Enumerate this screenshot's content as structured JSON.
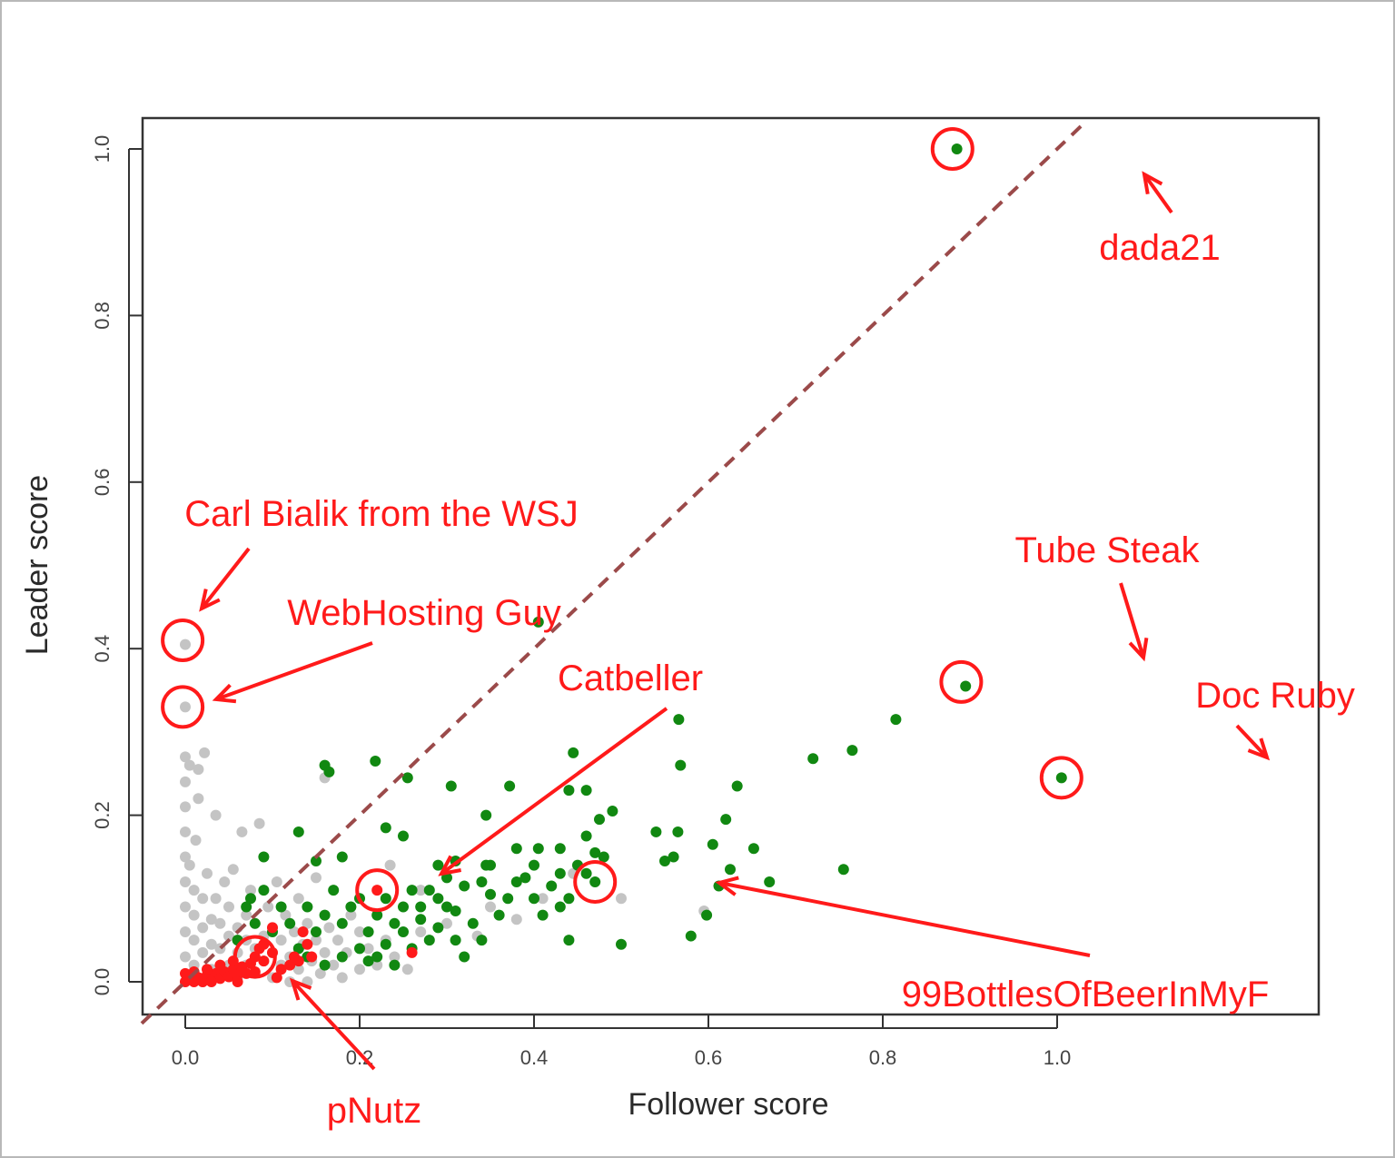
{
  "chart_data": {
    "type": "scatter",
    "title": "",
    "xlabel": "Follower score",
    "ylabel": "Leader score",
    "xlim": [
      -0.03,
      1.04
    ],
    "ylim": [
      -0.04,
      1.04
    ],
    "x_ticks": [
      "0.0",
      "0.2",
      "0.4",
      "0.6",
      "0.8",
      "1.0"
    ],
    "y_ticks": [
      "0.0",
      "0.2",
      "0.4",
      "0.6",
      "0.8",
      "1.0"
    ],
    "grid": false,
    "legend": "none",
    "reference_line": {
      "from": [
        -0.05,
        -0.05
      ],
      "to": [
        1.03,
        1.03
      ],
      "style": "dashed",
      "color": "#9b4a4a"
    },
    "colors": {
      "gray": "#c4c4c4",
      "green": "#118811",
      "red": "#ff1a1a",
      "annotation": "#ff1a1a"
    },
    "series": [
      {
        "color": "gray",
        "points": [
          [
            0.0,
            0.0
          ],
          [
            0.0,
            0.03
          ],
          [
            0.0,
            0.06
          ],
          [
            0.0,
            0.09
          ],
          [
            0.0,
            0.12
          ],
          [
            0.0,
            0.15
          ],
          [
            0.0,
            0.18
          ],
          [
            0.0,
            0.21
          ],
          [
            0.0,
            0.24
          ],
          [
            0.0,
            0.27
          ],
          [
            0.0,
            0.33
          ],
          [
            0.0,
            0.405
          ],
          [
            0.005,
            0.14
          ],
          [
            0.01,
            0.02
          ],
          [
            0.01,
            0.05
          ],
          [
            0.01,
            0.08
          ],
          [
            0.01,
            0.11
          ],
          [
            0.012,
            0.17
          ],
          [
            0.015,
            0.22
          ],
          [
            0.02,
            0.0
          ],
          [
            0.02,
            0.035
          ],
          [
            0.02,
            0.065
          ],
          [
            0.02,
            0.1
          ],
          [
            0.022,
            0.275
          ],
          [
            0.025,
            0.13
          ],
          [
            0.03,
            0.015
          ],
          [
            0.03,
            0.045
          ],
          [
            0.03,
            0.075
          ],
          [
            0.035,
            0.1
          ],
          [
            0.035,
            0.2
          ],
          [
            0.04,
            0.01
          ],
          [
            0.04,
            0.04
          ],
          [
            0.04,
            0.07
          ],
          [
            0.045,
            0.12
          ],
          [
            0.05,
            0.02
          ],
          [
            0.05,
            0.055
          ],
          [
            0.05,
            0.09
          ],
          [
            0.055,
            0.135
          ],
          [
            0.06,
            0.005
          ],
          [
            0.06,
            0.035
          ],
          [
            0.06,
            0.065
          ],
          [
            0.065,
            0.18
          ],
          [
            0.07,
            0.02
          ],
          [
            0.07,
            0.05
          ],
          [
            0.07,
            0.08
          ],
          [
            0.075,
            0.11
          ],
          [
            0.08,
            0.01
          ],
          [
            0.08,
            0.04
          ],
          [
            0.08,
            0.07
          ],
          [
            0.085,
            0.19
          ],
          [
            0.09,
            0.025
          ],
          [
            0.09,
            0.055
          ],
          [
            0.095,
            0.09
          ],
          [
            0.1,
            0.005
          ],
          [
            0.1,
            0.035
          ],
          [
            0.1,
            0.065
          ],
          [
            0.105,
            0.12
          ],
          [
            0.11,
            0.02
          ],
          [
            0.11,
            0.05
          ],
          [
            0.115,
            0.08
          ],
          [
            0.12,
            0.0
          ],
          [
            0.12,
            0.03
          ],
          [
            0.125,
            0.06
          ],
          [
            0.13,
            0.015
          ],
          [
            0.13,
            0.1
          ],
          [
            0.135,
            0.045
          ],
          [
            0.14,
            0.0
          ],
          [
            0.14,
            0.07
          ],
          [
            0.145,
            0.025
          ],
          [
            0.15,
            0.05
          ],
          [
            0.15,
            0.125
          ],
          [
            0.155,
            0.01
          ],
          [
            0.16,
            0.035
          ],
          [
            0.16,
            0.245
          ],
          [
            0.165,
            0.065
          ],
          [
            0.17,
            0.02
          ],
          [
            0.175,
            0.05
          ],
          [
            0.18,
            0.005
          ],
          [
            0.185,
            0.035
          ],
          [
            0.19,
            0.08
          ],
          [
            0.2,
            0.015
          ],
          [
            0.2,
            0.06
          ],
          [
            0.21,
            0.04
          ],
          [
            0.22,
            0.02
          ],
          [
            0.23,
            0.05
          ],
          [
            0.24,
            0.03
          ],
          [
            0.255,
            0.015
          ],
          [
            0.27,
            0.06
          ],
          [
            0.3,
            0.07
          ],
          [
            0.335,
            0.055
          ],
          [
            0.35,
            0.09
          ],
          [
            0.38,
            0.075
          ],
          [
            0.41,
            0.1
          ],
          [
            0.445,
            0.13
          ],
          [
            0.5,
            0.1
          ],
          [
            0.595,
            0.085
          ],
          [
            0.235,
            0.14
          ],
          [
            0.27,
            0.11
          ],
          [
            0.005,
            0.26
          ],
          [
            0.015,
            0.255
          ]
        ]
      },
      {
        "color": "green",
        "points": [
          [
            0.885,
            1.0
          ],
          [
            0.895,
            0.355
          ],
          [
            1.005,
            0.245
          ],
          [
            0.405,
            0.432
          ],
          [
            0.47,
            0.12
          ],
          [
            0.16,
            0.26
          ],
          [
            0.165,
            0.252
          ],
          [
            0.218,
            0.265
          ],
          [
            0.255,
            0.245
          ],
          [
            0.305,
            0.235
          ],
          [
            0.345,
            0.2
          ],
          [
            0.372,
            0.235
          ],
          [
            0.445,
            0.275
          ],
          [
            0.44,
            0.23
          ],
          [
            0.46,
            0.23
          ],
          [
            0.46,
            0.175
          ],
          [
            0.475,
            0.195
          ],
          [
            0.49,
            0.205
          ],
          [
            0.566,
            0.315
          ],
          [
            0.568,
            0.26
          ],
          [
            0.633,
            0.235
          ],
          [
            0.72,
            0.268
          ],
          [
            0.765,
            0.278
          ],
          [
            0.815,
            0.315
          ],
          [
            0.62,
            0.195
          ],
          [
            0.565,
            0.18
          ],
          [
            0.54,
            0.18
          ],
          [
            0.652,
            0.16
          ],
          [
            0.67,
            0.12
          ],
          [
            0.755,
            0.135
          ],
          [
            0.605,
            0.165
          ],
          [
            0.625,
            0.135
          ],
          [
            0.612,
            0.115
          ],
          [
            0.598,
            0.08
          ],
          [
            0.58,
            0.055
          ],
          [
            0.55,
            0.145
          ],
          [
            0.56,
            0.15
          ],
          [
            0.5,
            0.045
          ],
          [
            0.44,
            0.05
          ],
          [
            0.075,
            0.1
          ],
          [
            0.09,
            0.15
          ],
          [
            0.13,
            0.18
          ],
          [
            0.15,
            0.145
          ],
          [
            0.18,
            0.15
          ],
          [
            0.23,
            0.185
          ],
          [
            0.25,
            0.175
          ],
          [
            0.29,
            0.14
          ],
          [
            0.31,
            0.145
          ],
          [
            0.345,
            0.14
          ],
          [
            0.35,
            0.14
          ],
          [
            0.38,
            0.16
          ],
          [
            0.4,
            0.14
          ],
          [
            0.405,
            0.16
          ],
          [
            0.43,
            0.16
          ],
          [
            0.43,
            0.13
          ],
          [
            0.46,
            0.13
          ],
          [
            0.38,
            0.12
          ],
          [
            0.37,
            0.1
          ],
          [
            0.4,
            0.1
          ],
          [
            0.41,
            0.08
          ],
          [
            0.43,
            0.09
          ],
          [
            0.36,
            0.08
          ],
          [
            0.33,
            0.07
          ],
          [
            0.34,
            0.05
          ],
          [
            0.31,
            0.05
          ],
          [
            0.32,
            0.03
          ],
          [
            0.3,
            0.09
          ],
          [
            0.28,
            0.11
          ],
          [
            0.27,
            0.09
          ],
          [
            0.26,
            0.11
          ],
          [
            0.25,
            0.09
          ],
          [
            0.24,
            0.07
          ],
          [
            0.23,
            0.1
          ],
          [
            0.22,
            0.08
          ],
          [
            0.21,
            0.06
          ],
          [
            0.2,
            0.1
          ],
          [
            0.19,
            0.09
          ],
          [
            0.18,
            0.07
          ],
          [
            0.17,
            0.11
          ],
          [
            0.16,
            0.08
          ],
          [
            0.15,
            0.06
          ],
          [
            0.14,
            0.09
          ],
          [
            0.13,
            0.04
          ],
          [
            0.12,
            0.07
          ],
          [
            0.11,
            0.09
          ],
          [
            0.1,
            0.06
          ],
          [
            0.09,
            0.11
          ],
          [
            0.08,
            0.07
          ],
          [
            0.07,
            0.09
          ],
          [
            0.06,
            0.05
          ],
          [
            0.28,
            0.05
          ],
          [
            0.26,
            0.04
          ],
          [
            0.24,
            0.02
          ],
          [
            0.22,
            0.03
          ],
          [
            0.2,
            0.04
          ],
          [
            0.18,
            0.03
          ],
          [
            0.16,
            0.02
          ],
          [
            0.14,
            0.03
          ],
          [
            0.34,
            0.12
          ],
          [
            0.32,
            0.115
          ],
          [
            0.3,
            0.125
          ],
          [
            0.29,
            0.1
          ],
          [
            0.27,
            0.075
          ],
          [
            0.25,
            0.06
          ],
          [
            0.23,
            0.045
          ],
          [
            0.21,
            0.025
          ],
          [
            0.29,
            0.065
          ],
          [
            0.31,
            0.085
          ],
          [
            0.35,
            0.105
          ],
          [
            0.39,
            0.125
          ],
          [
            0.42,
            0.115
          ],
          [
            0.44,
            0.1
          ],
          [
            0.45,
            0.14
          ],
          [
            0.47,
            0.155
          ],
          [
            0.48,
            0.15
          ]
        ]
      },
      {
        "color": "red",
        "points": [
          [
            0.22,
            0.11
          ],
          [
            0.26,
            0.035
          ],
          [
            0.0,
            0.0
          ],
          [
            0.005,
            0.005
          ],
          [
            0.01,
            0.0
          ],
          [
            0.015,
            0.005
          ],
          [
            0.02,
            0.0
          ],
          [
            0.025,
            0.008
          ],
          [
            0.03,
            0.003
          ],
          [
            0.035,
            0.01
          ],
          [
            0.04,
            0.004
          ],
          [
            0.045,
            0.012
          ],
          [
            0.05,
            0.006
          ],
          [
            0.055,
            0.015
          ],
          [
            0.06,
            0.008
          ],
          [
            0.065,
            0.018
          ],
          [
            0.07,
            0.01
          ],
          [
            0.075,
            0.022
          ],
          [
            0.08,
            0.03
          ],
          [
            0.085,
            0.04
          ],
          [
            0.09,
            0.025
          ],
          [
            0.1,
            0.035
          ],
          [
            0.12,
            0.02
          ],
          [
            0.125,
            0.03
          ],
          [
            0.13,
            0.025
          ],
          [
            0.135,
            0.06
          ],
          [
            0.14,
            0.045
          ],
          [
            0.055,
            0.025
          ],
          [
            0.04,
            0.02
          ],
          [
            0.025,
            0.015
          ],
          [
            0.0,
            0.01
          ],
          [
            0.01,
            0.012
          ],
          [
            0.03,
            0.0
          ],
          [
            0.06,
            0.0
          ],
          [
            0.08,
            0.012
          ],
          [
            0.1,
            0.065
          ],
          [
            0.11,
            0.015
          ],
          [
            0.09,
            0.045
          ],
          [
            0.145,
            0.03
          ],
          [
            0.105,
            0.005
          ]
        ]
      }
    ],
    "annotations": [
      {
        "label": "dada21",
        "point": [
          0.88,
          1.0
        ]
      },
      {
        "label": "Carl Bialik from the WSJ",
        "point": [
          -0.003,
          0.41
        ]
      },
      {
        "label": "WebHosting Guy",
        "point": [
          -0.003,
          0.33
        ]
      },
      {
        "label": "Tube Steak",
        "point": [
          0.89,
          0.36
        ]
      },
      {
        "label": "Doc Ruby",
        "point": [
          1.005,
          0.245
        ]
      },
      {
        "label": "Catbeller",
        "point": [
          0.22,
          0.11
        ]
      },
      {
        "label": "99BottlesOfBeerInMyF",
        "point": [
          0.47,
          0.12
        ]
      },
      {
        "label": "pNutz",
        "point": [
          0.08,
          0.03
        ]
      }
    ]
  }
}
